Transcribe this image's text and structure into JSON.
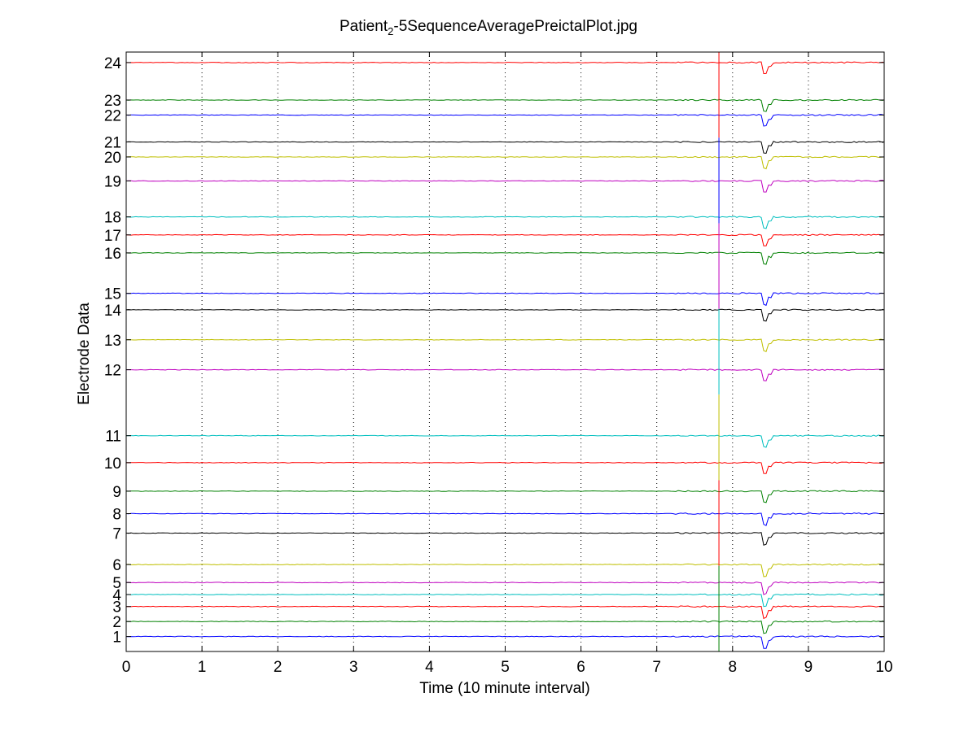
{
  "chart_data": {
    "type": "line",
    "title_main": "Patient",
    "title_sub": "2",
    "title_rest": "-5SequenceAveragePreictalPlot.jpg",
    "xlabel": "Time (10 minute interval)",
    "ylabel": "Electrode Data",
    "xlim": [
      0,
      10
    ],
    "x_ticks": [
      "0",
      "1",
      "2",
      "3",
      "4",
      "5",
      "6",
      "7",
      "8",
      "9",
      "10"
    ],
    "grid": "x-dotted",
    "event_x": 7.82,
    "dip_x": 8.42,
    "series": [
      {
        "name": "1",
        "level": 1.0,
        "color": "#0000ff"
      },
      {
        "name": "2",
        "level": 2.0,
        "color": "#008000"
      },
      {
        "name": "3",
        "level": 3.0,
        "color": "#ff0000"
      },
      {
        "name": "4",
        "level": 3.8,
        "color": "#00bfbf"
      },
      {
        "name": "5",
        "level": 4.6,
        "color": "#bf00bf"
      },
      {
        "name": "6",
        "level": 5.8,
        "color": "#bfbf00"
      },
      {
        "name": "7",
        "level": 7.9,
        "color": "#000000"
      },
      {
        "name": "8",
        "level": 9.2,
        "color": "#0000ff"
      },
      {
        "name": "9",
        "level": 10.7,
        "color": "#008000"
      },
      {
        "name": "10",
        "level": 12.6,
        "color": "#ff0000"
      },
      {
        "name": "11",
        "level": 14.4,
        "color": "#00bfbf"
      },
      {
        "name": "12",
        "level": 18.8,
        "color": "#bf00bf"
      },
      {
        "name": "13",
        "level": 20.8,
        "color": "#bfbf00"
      },
      {
        "name": "14",
        "level": 22.8,
        "color": "#000000"
      },
      {
        "name": "15",
        "level": 23.9,
        "color": "#0000ff"
      },
      {
        "name": "16",
        "level": 26.6,
        "color": "#008000"
      },
      {
        "name": "17",
        "level": 27.8,
        "color": "#ff0000"
      },
      {
        "name": "18",
        "level": 29.0,
        "color": "#00bfbf"
      },
      {
        "name": "19",
        "level": 31.4,
        "color": "#bf00bf"
      },
      {
        "name": "20",
        "level": 33.0,
        "color": "#bfbf00"
      },
      {
        "name": "21",
        "level": 34.0,
        "color": "#000000"
      },
      {
        "name": "22",
        "level": 35.8,
        "color": "#0000ff"
      },
      {
        "name": "23",
        "level": 36.8,
        "color": "#008000"
      },
      {
        "name": "24",
        "level": 39.3,
        "color": "#ff0000"
      }
    ]
  }
}
